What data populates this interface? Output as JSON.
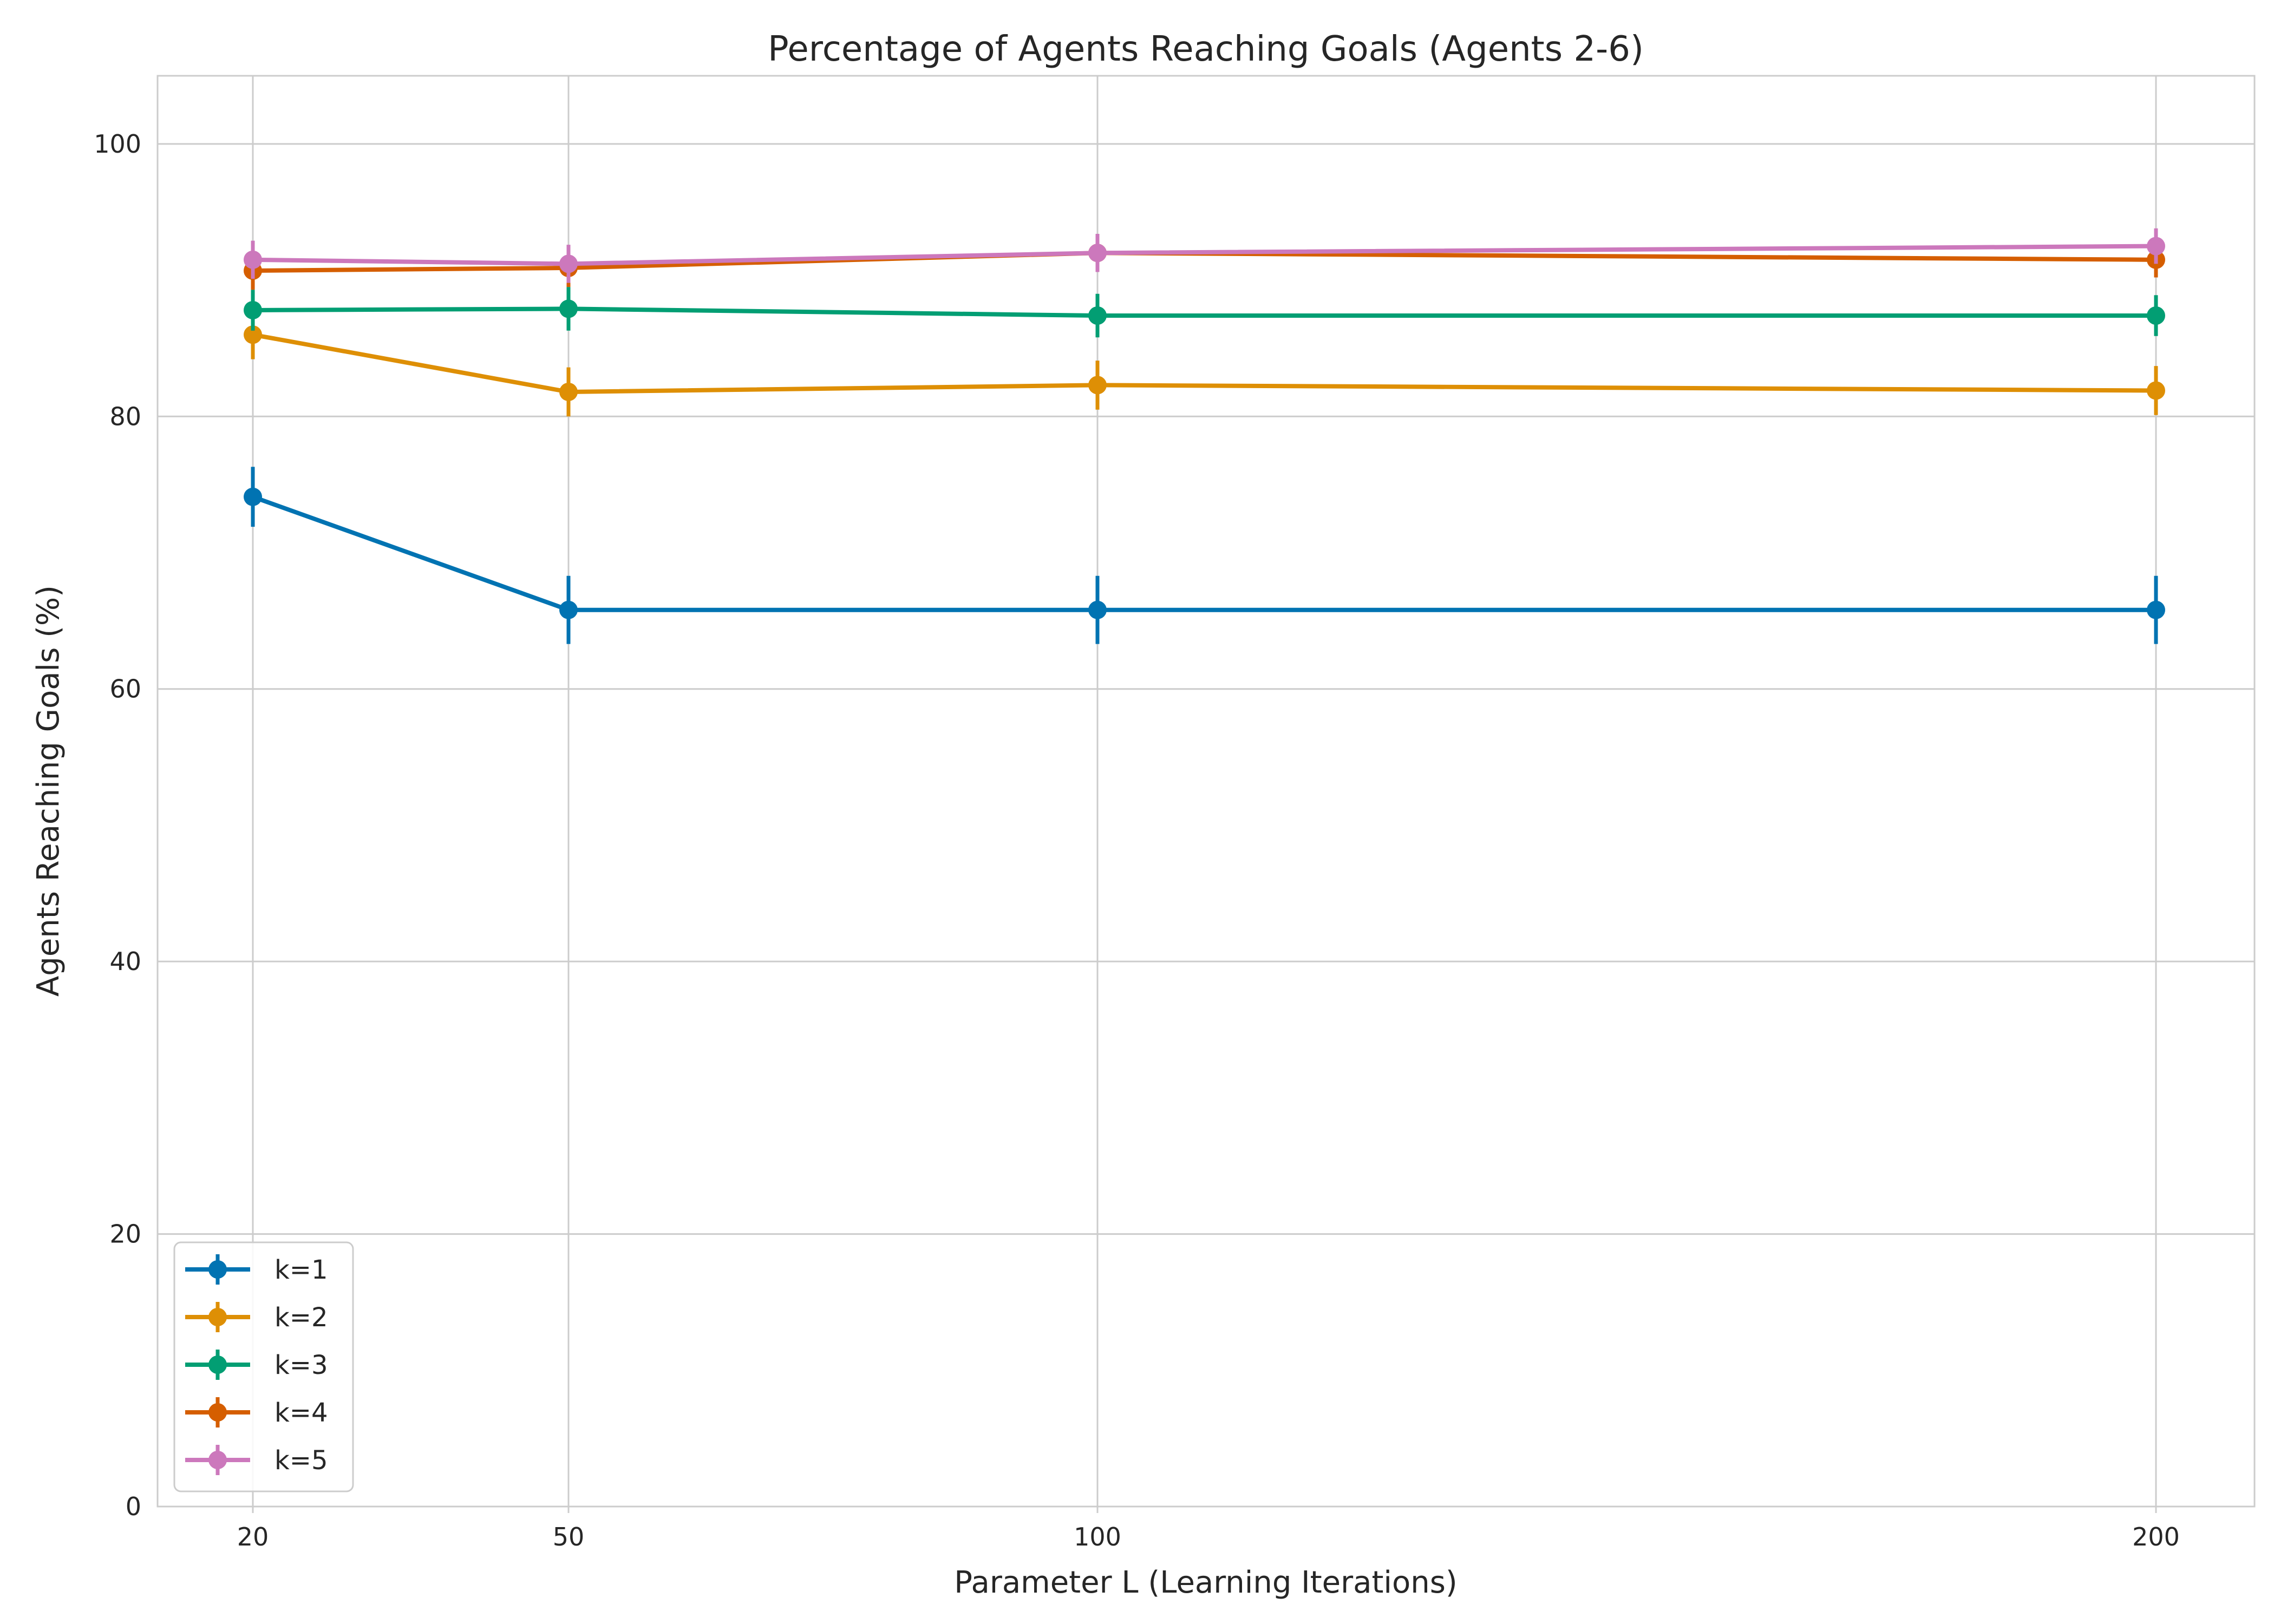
{
  "chart_data": {
    "type": "line",
    "title": "Percentage of Agents Reaching Goals (Agents 2-6)",
    "xlabel": "Parameter L (Learning Iterations)",
    "ylabel": "Agents Reaching Goals (%)",
    "x": [
      20,
      50,
      100,
      200
    ],
    "x_tick_labels": [
      "20",
      "50",
      "100",
      "200"
    ],
    "xlim": [
      11,
      206
    ],
    "ylim": [
      0,
      105
    ],
    "y_ticks": [
      0,
      20,
      40,
      60,
      80,
      100
    ],
    "y_tick_labels": [
      "0",
      "20",
      "40",
      "60",
      "80",
      "100"
    ],
    "grid": true,
    "legend_position": "lower-left",
    "series": [
      {
        "name": "k=1",
        "color": "#0173b2",
        "values": [
          74.1,
          65.8,
          65.8,
          65.8
        ],
        "errors": [
          2.2,
          2.5,
          2.5,
          2.5
        ]
      },
      {
        "name": "k=2",
        "color": "#de8f05",
        "values": [
          86.0,
          81.8,
          82.3,
          81.9
        ],
        "errors": [
          1.8,
          1.8,
          1.8,
          1.8
        ]
      },
      {
        "name": "k=3",
        "color": "#029e73",
        "values": [
          87.8,
          87.9,
          87.4,
          87.4
        ],
        "errors": [
          1.5,
          1.6,
          1.6,
          1.5
        ]
      },
      {
        "name": "k=4",
        "color": "#d55e00",
        "values": [
          90.7,
          90.9,
          92.0,
          91.5
        ],
        "errors": [
          1.4,
          1.4,
          1.3,
          1.3
        ]
      },
      {
        "name": "k=5",
        "color": "#cc78bc",
        "values": [
          91.5,
          91.2,
          92.0,
          92.5
        ],
        "errors": [
          1.4,
          1.4,
          1.4,
          1.3
        ]
      }
    ]
  }
}
